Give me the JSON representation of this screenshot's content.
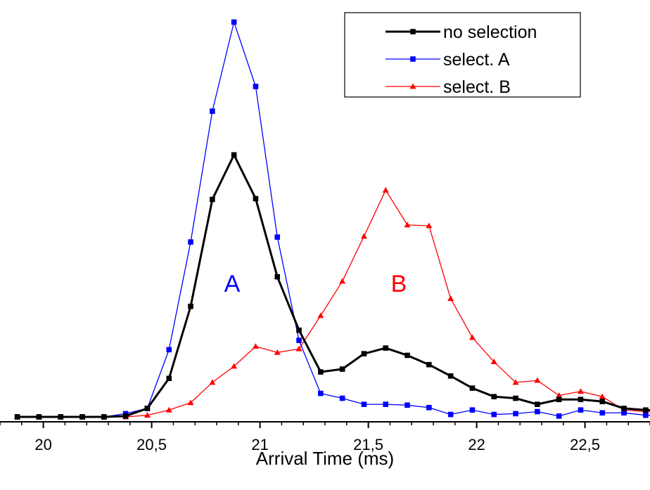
{
  "chart_data": {
    "type": "line",
    "xlabel": "Arrival Time (ms)",
    "ylabel": "",
    "xlim": [
      19.8,
      22.8
    ],
    "ylim": [
      0,
      100
    ],
    "x_ticks": [
      {
        "value": 20.0,
        "label": "20"
      },
      {
        "value": 20.5,
        "label": "20,5"
      },
      {
        "value": 21.0,
        "label": "21"
      },
      {
        "value": 21.5,
        "label": "21,5"
      },
      {
        "value": 22.0,
        "label": "22"
      },
      {
        "value": 22.5,
        "label": "22,5"
      }
    ],
    "x": [
      19.88,
      19.98,
      20.08,
      20.18,
      20.28,
      20.38,
      20.48,
      20.58,
      20.68,
      20.78,
      20.88,
      20.98,
      21.08,
      21.18,
      21.28,
      21.38,
      21.48,
      21.58,
      21.68,
      21.78,
      21.88,
      21.98,
      22.08,
      22.18,
      22.28,
      22.38,
      22.48,
      22.58,
      22.68,
      22.78,
      22.88
    ],
    "series": [
      {
        "name": "no selection",
        "color": "#000000",
        "marker": "square",
        "values": [
          0.0,
          0.0,
          0.0,
          0.0,
          0.0,
          0.2,
          2.1,
          9.5,
          27.3,
          53.7,
          64.7,
          53.9,
          34.6,
          21.4,
          11.1,
          11.8,
          15.6,
          17.0,
          15.2,
          12.9,
          10.1,
          7.1,
          5.0,
          4.6,
          3.1,
          4.3,
          4.3,
          3.8,
          2.1,
          1.7,
          1.7
        ]
      },
      {
        "name": "select. A",
        "color": "#0000ff",
        "marker": "square",
        "values": [
          0.0,
          0.0,
          0.0,
          0.0,
          0.0,
          0.8,
          2.1,
          16.6,
          43.2,
          75.5,
          97.5,
          81.6,
          44.4,
          18.9,
          5.8,
          4.6,
          3.1,
          3.1,
          2.9,
          2.3,
          0.6,
          1.7,
          0.6,
          0.8,
          1.3,
          0.2,
          1.7,
          1.0,
          1.0,
          0.4,
          0.4
        ]
      },
      {
        "name": "select. B",
        "color": "#ff0000",
        "marker": "triangle",
        "values": [
          0.0,
          0.0,
          0.0,
          0.0,
          0.0,
          0.0,
          0.4,
          1.7,
          3.5,
          8.5,
          12.5,
          17.4,
          15.9,
          16.8,
          25.0,
          33.5,
          44.6,
          56.0,
          47.4,
          47.2,
          29.2,
          19.6,
          13.6,
          8.5,
          9.0,
          5.3,
          6.3,
          5.0,
          1.7,
          1.3,
          1.3
        ]
      }
    ],
    "annotations": [
      {
        "text": "A",
        "color": "#0000ff"
      },
      {
        "text": "B",
        "color": "#ff0000"
      }
    ],
    "legend": {
      "position": "top-right"
    },
    "grid": false
  }
}
